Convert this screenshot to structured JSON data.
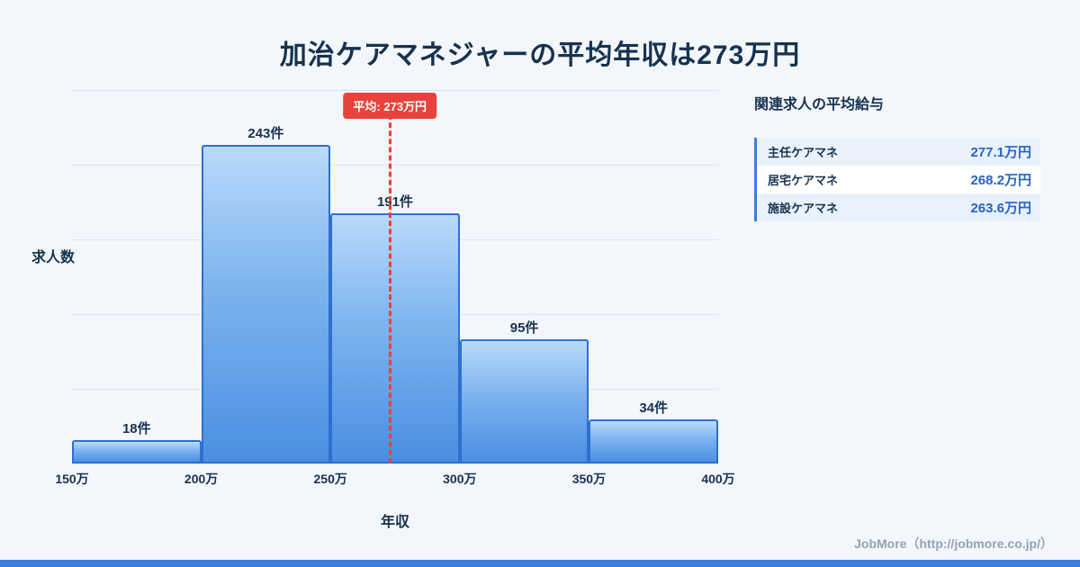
{
  "title": "加治ケアマネジャーの平均年収は273万円",
  "chart_data": {
    "type": "bar",
    "categories": [
      "150万-200万",
      "200万-250万",
      "250万-300万",
      "300万-350万",
      "350万-400万"
    ],
    "values": [
      18,
      243,
      191,
      95,
      34
    ],
    "bar_labels": [
      "18件",
      "243件",
      "191件",
      "95件",
      "34件"
    ],
    "x_ticks": [
      "150万",
      "200万",
      "250万",
      "300万",
      "350万",
      "400万"
    ],
    "x_range": [
      150,
      400
    ],
    "ylim": [
      0,
      285
    ],
    "xlabel": "年収",
    "ylabel": "求人数",
    "grid": true,
    "legend": "none",
    "average": {
      "value": 273,
      "label": "平均: 273万円"
    }
  },
  "side_panel": {
    "heading": "関連求人の平均給与",
    "rows": [
      {
        "label": "主任ケアマネ",
        "value": "277.1万円"
      },
      {
        "label": "居宅ケアマネ",
        "value": "268.2万円"
      },
      {
        "label": "施設ケアマネ",
        "value": "263.6万円"
      }
    ]
  },
  "footer": {
    "credit": "JobMore（http://jobmore.co.jp/）"
  },
  "colors": {
    "background": "#f3f7fb",
    "title_navy": "#16324f",
    "accent_blue": "#3b7ddd",
    "value_blue": "#2563c8",
    "average_red": "#e8423c",
    "bar_top": "#b9dafa",
    "bar_bottom": "#4a8fe2",
    "bar_border": "#2e6fd0"
  }
}
